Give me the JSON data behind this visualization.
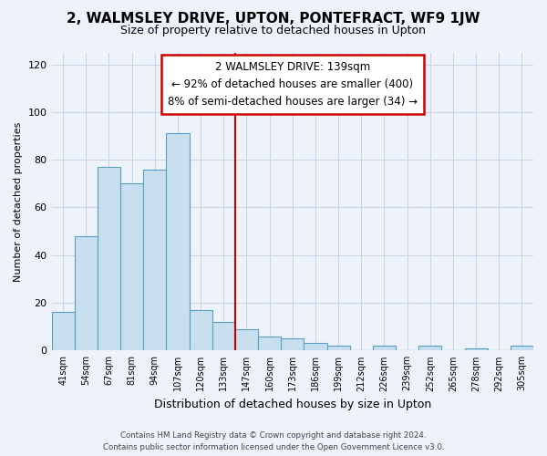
{
  "title": "2, WALMSLEY DRIVE, UPTON, PONTEFRACT, WF9 1JW",
  "subtitle": "Size of property relative to detached houses in Upton",
  "xlabel": "Distribution of detached houses by size in Upton",
  "ylabel": "Number of detached properties",
  "categories": [
    "41sqm",
    "54sqm",
    "67sqm",
    "81sqm",
    "94sqm",
    "107sqm",
    "120sqm",
    "133sqm",
    "147sqm",
    "160sqm",
    "173sqm",
    "186sqm",
    "199sqm",
    "212sqm",
    "226sqm",
    "239sqm",
    "252sqm",
    "265sqm",
    "278sqm",
    "292sqm",
    "305sqm"
  ],
  "values": [
    16,
    48,
    77,
    70,
    76,
    91,
    17,
    12,
    9,
    6,
    5,
    3,
    2,
    0,
    2,
    0,
    2,
    0,
    1,
    0,
    2
  ],
  "bar_color": "#c8dff0",
  "bar_edge_color": "#5a9ec0",
  "vline_x": 7.5,
  "vline_color": "#cc0000",
  "annotation_line1": "2 WALMSLEY DRIVE: 139sqm",
  "annotation_line2": "← 92% of detached houses are smaller (400)",
  "annotation_line3": "8% of semi-detached houses are larger (34) →",
  "annotation_box_color": "white",
  "annotation_box_edge_color": "#cc0000",
  "ylim": [
    0,
    125
  ],
  "yticks": [
    0,
    20,
    40,
    60,
    80,
    100,
    120
  ],
  "footer_line1": "Contains HM Land Registry data © Crown copyright and database right 2024.",
  "footer_line2": "Contains public sector information licensed under the Open Government Licence v3.0.",
  "grid_color": "#c8d4e8",
  "bg_color": "#eef2fa",
  "title_fontsize": 11,
  "subtitle_fontsize": 9
}
